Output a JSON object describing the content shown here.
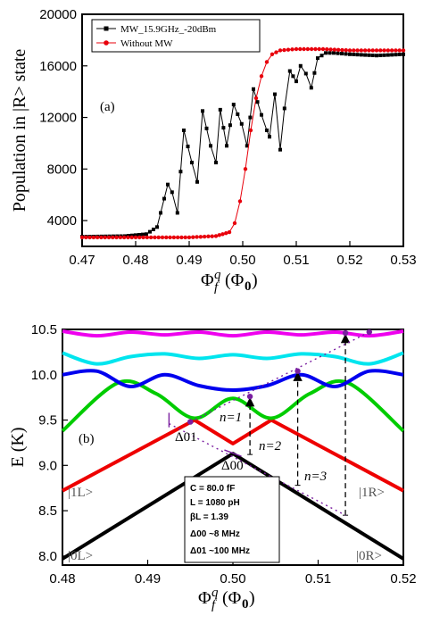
{
  "chart_data": [
    {
      "type": "line",
      "panel_label": "(a)",
      "xlabel": "Φ_f^q (Φ0)",
      "ylabel": "Population in |R> state",
      "xlim": [
        0.47,
        0.53
      ],
      "ylim": [
        2000,
        20000
      ],
      "xticks": [
        "0.47",
        "0.48",
        "0.49",
        "0.50",
        "0.51",
        "0.52",
        "0.53"
      ],
      "yticks": [
        "4000",
        "8000",
        "12000",
        "16000",
        "20000"
      ],
      "legend": {
        "placement": "top-left",
        "entries": [
          "MW_15.9GHz_-20dBm",
          "Without MW"
        ]
      },
      "series": [
        {
          "name": "MW_15.9GHz_-20dBm",
          "color": "#000000",
          "marker": "square",
          "x": [
            0.47,
            0.478,
            0.482,
            0.484,
            0.486,
            0.4868,
            0.4878,
            0.489,
            0.4905,
            0.4915,
            0.4925,
            0.494,
            0.495,
            0.4958,
            0.497,
            0.4983,
            0.4998,
            0.5008,
            0.502,
            0.5035,
            0.5045,
            0.505,
            0.506,
            0.507,
            0.5078,
            0.5088,
            0.51,
            0.5108,
            0.5118,
            0.5128,
            0.514,
            0.5155,
            0.517,
            0.52,
            0.525,
            0.53
          ],
          "y": [
            2750,
            2800,
            2950,
            3500,
            6800,
            6200,
            4600,
            11000,
            8500,
            7000,
            12500,
            9800,
            8500,
            12600,
            9800,
            13000,
            11500,
            9800,
            14200,
            12200,
            11000,
            10500,
            13800,
            9500,
            12700,
            15600,
            14800,
            16000,
            15400,
            14300,
            16600,
            17000,
            17000,
            16900,
            16800,
            16900
          ]
        },
        {
          "name": "Without MW",
          "color": "#e8000b",
          "marker": "circle",
          "x": [
            0.47,
            0.48,
            0.49,
            0.495,
            0.4975,
            0.4985,
            0.4995,
            0.5005,
            0.5015,
            0.5025,
            0.5035,
            0.5045,
            0.5055,
            0.507,
            0.51,
            0.515,
            0.52,
            0.53
          ],
          "y": [
            2700,
            2700,
            2700,
            2800,
            3100,
            3800,
            5500,
            8000,
            11000,
            13500,
            15200,
            16300,
            16900,
            17200,
            17300,
            17300,
            17200,
            17200
          ]
        }
      ]
    },
    {
      "type": "line",
      "panel_label": "(b)",
      "xlabel": "Φ_f^q (Φ0)",
      "ylabel": "E (K)",
      "xlim": [
        0.48,
        0.52
      ],
      "ylim": [
        7.9,
        10.5
      ],
      "xticks": [
        "0.48",
        "0.49",
        "0.50",
        "0.51",
        "0.52"
      ],
      "yticks": [
        "8.0",
        "8.5",
        "9.0",
        "9.5",
        "10.0",
        "10.5"
      ],
      "series": [
        {
          "color": "#000000",
          "x": [
            0.48,
            0.5,
            0.52
          ],
          "y": [
            7.97,
            9.13,
            7.97
          ]
        },
        {
          "color": "#ee0000",
          "x": [
            0.48,
            0.4955,
            0.5,
            0.5045,
            0.52
          ],
          "y": [
            8.72,
            9.5,
            9.24,
            9.5,
            8.72
          ]
        },
        {
          "color": "#00cc00",
          "x": [
            0.48,
            0.4865,
            0.491,
            0.4955,
            0.5,
            0.5045,
            0.509,
            0.5135,
            0.52
          ],
          "y": [
            9.38,
            9.91,
            9.79,
            9.52,
            9.74,
            9.52,
            9.79,
            9.91,
            9.38
          ]
        },
        {
          "color": "#0000ee",
          "x": [
            0.48,
            0.484,
            0.488,
            0.492,
            0.496,
            0.5,
            0.504,
            0.508,
            0.512,
            0.516,
            0.52
          ],
          "y": [
            10.0,
            10.04,
            9.87,
            10.0,
            9.88,
            9.83,
            9.88,
            10.0,
            9.87,
            10.04,
            10.0
          ]
        },
        {
          "color": "#00e5ee",
          "x": [
            0.48,
            0.484,
            0.488,
            0.492,
            0.496,
            0.5,
            0.504,
            0.508,
            0.512,
            0.516,
            0.52
          ],
          "y": [
            10.24,
            10.12,
            10.2,
            10.23,
            10.18,
            10.22,
            10.18,
            10.23,
            10.2,
            10.12,
            10.24
          ]
        },
        {
          "color": "#ee00ee",
          "x": [
            0.48,
            0.484,
            0.488,
            0.492,
            0.496,
            0.5,
            0.504,
            0.508,
            0.512,
            0.516,
            0.52
          ],
          "y": [
            10.48,
            10.43,
            10.47,
            10.44,
            10.47,
            10.43,
            10.47,
            10.44,
            10.47,
            10.43,
            10.48
          ]
        }
      ],
      "transitions": [
        {
          "label": "n=1",
          "x": 0.502,
          "y_from": 9.12,
          "y_to": 9.76
        },
        {
          "label": "n=2",
          "x": 0.5076,
          "y_from": 8.78,
          "y_to": 10.04
        },
        {
          "label": "n=3",
          "x": 0.5132,
          "y_from": 8.45,
          "y_to": 10.46
        }
      ],
      "resonance_points": [
        {
          "x": 0.495,
          "y": 9.48
        },
        {
          "x": 0.502,
          "y": 9.76
        },
        {
          "x": 0.5076,
          "y": 10.04
        },
        {
          "x": 0.5132,
          "y": 10.46
        },
        {
          "x": 0.516,
          "y": 10.47
        }
      ],
      "annotations": {
        "transition_labels": [
          "n=1",
          "n=2",
          "n=3"
        ],
        "delta_01": "Δ01",
        "delta_00": "Δ00",
        "state_1L": "|1L>",
        "state_0L": "|0L>",
        "state_1R": "|1R>",
        "state_0R": "|0R>",
        "params": [
          "C = 80.0 fF",
          "L = 1080 pH",
          "βL = 1.39",
          "Δ00 ~8 MHz",
          "Δ01 ~100 MHz"
        ]
      }
    }
  ]
}
